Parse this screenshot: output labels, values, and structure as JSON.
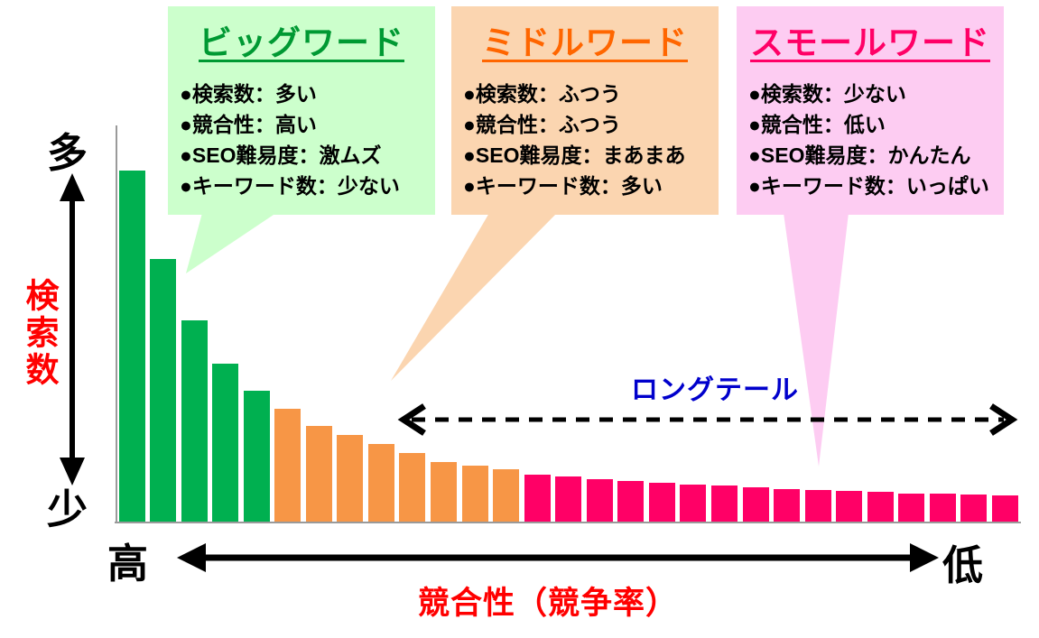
{
  "callouts": [
    {
      "id": "big",
      "title": "ビッグワード",
      "title_color": "#009933",
      "bg": "#CCFFCC",
      "bullets": [
        "●検索数：多い",
        "●競合性：高い",
        "●SEO難易度：激ムズ",
        "●キーワード数：少ない"
      ]
    },
    {
      "id": "middle",
      "title": "ミドルワード",
      "title_color": "#FF6600",
      "bg": "#FBD5B0",
      "bullets": [
        "●検索数：ふつう",
        "●競合性：ふつう",
        "●SEO難易度：まあまあ",
        "●キーワード数：多い"
      ]
    },
    {
      "id": "small",
      "title": "スモールワード",
      "title_color": "#FF0066",
      "bg": "#FDCCF2",
      "bullets": [
        "●検索数：少ない",
        "●競合性：低い",
        "●SEO難易度：かんたん",
        "●キーワード数：いっぱい"
      ]
    }
  ],
  "axes": {
    "y_top": "多",
    "y_bottom": "少",
    "y_label": "検索数",
    "x_left": "高",
    "x_right": "低",
    "x_label": "競合性（競争率）",
    "label_color": "#FF0000"
  },
  "longtail": {
    "label": "ロングテール",
    "color": "#0000CC"
  },
  "chart_data": {
    "type": "bar",
    "title": "",
    "xlabel": "競合性（競争率） 高→低",
    "ylabel": "検索数 多→少",
    "value_scale": "relative height (no numeric axis shown)",
    "grid": false,
    "legend_position": "none",
    "series": [
      {
        "id": "big",
        "name": "ビッグワード",
        "color": "#00B050",
        "values": [
          389,
          291,
          223,
          175,
          145
        ]
      },
      {
        "id": "middle",
        "name": "ミドルワード",
        "color": "#F79646",
        "values": [
          125,
          106,
          96,
          86,
          76,
          66,
          62,
          58
        ]
      },
      {
        "id": "small",
        "name": "スモールワード",
        "color": "#FF0066",
        "values": [
          52,
          50,
          47,
          45,
          43,
          41,
          40,
          38,
          36,
          35,
          34,
          33,
          31,
          31,
          30,
          29
        ]
      }
    ]
  }
}
